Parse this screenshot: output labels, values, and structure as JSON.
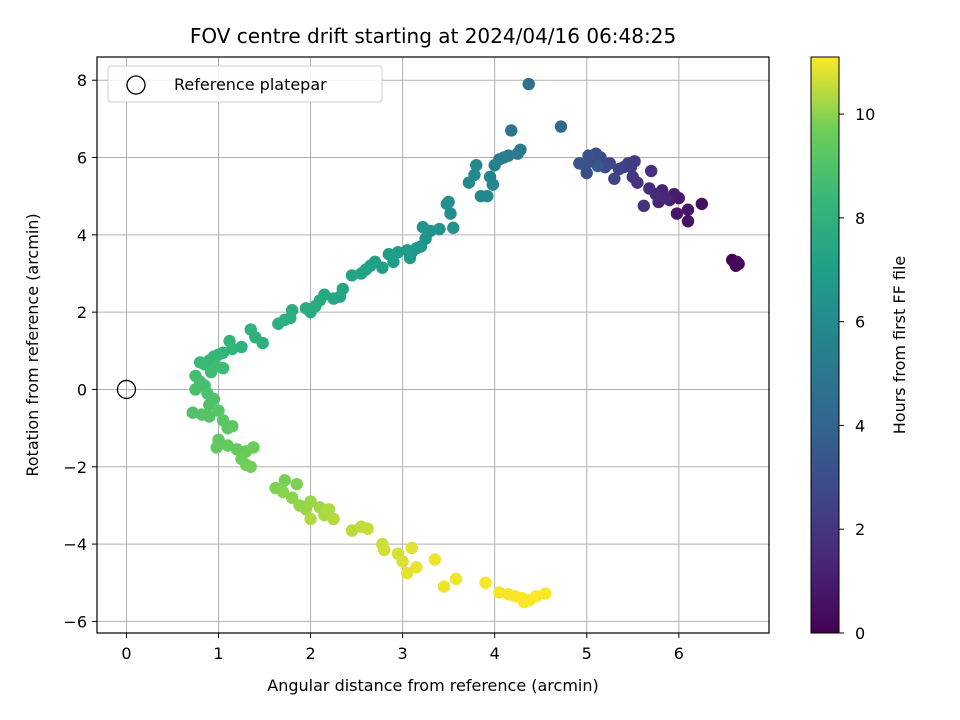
{
  "chart_data": {
    "type": "scatter",
    "title": "FOV centre drift starting at 2024/04/16 06:48:25",
    "xlabel": "Angular distance from reference (arcmin)",
    "ylabel": "Rotation from reference (arcmin)",
    "xlim": [
      -0.32,
      6.98
    ],
    "ylim": [
      -6.3,
      8.6
    ],
    "x_ticks": [
      0,
      1,
      2,
      3,
      4,
      5,
      6
    ],
    "y_ticks": [
      -6,
      -4,
      -2,
      0,
      2,
      4,
      6,
      8
    ],
    "grid": true,
    "colormap": "viridis",
    "colorbar": {
      "label": "Hours from first FF file",
      "range": [
        0,
        11.1
      ],
      "ticks": [
        0,
        2,
        4,
        6,
        8,
        10
      ]
    },
    "legend": {
      "position": "top-left",
      "entries": [
        "Reference platepar"
      ]
    },
    "reference_point": {
      "x": 0,
      "y": 0
    },
    "series": [
      {
        "fields": [
          "x",
          "y",
          "hours"
        ],
        "points": [
          [
            6.6,
            3.3,
            0.05
          ],
          [
            6.62,
            3.2,
            0.1
          ],
          [
            6.58,
            3.35,
            0.15
          ],
          [
            6.65,
            3.25,
            0.2
          ],
          [
            6.63,
            3.3,
            0.25
          ],
          [
            6.25,
            4.8,
            0.5
          ],
          [
            6.1,
            4.35,
            0.6
          ],
          [
            6.1,
            4.65,
            0.7
          ],
          [
            5.98,
            4.55,
            0.8
          ],
          [
            6.0,
            4.95,
            0.9
          ],
          [
            5.95,
            5.05,
            1.0
          ],
          [
            5.9,
            4.9,
            1.1
          ],
          [
            5.82,
            5.15,
            1.2
          ],
          [
            5.78,
            4.85,
            1.3
          ],
          [
            5.85,
            4.95,
            1.4
          ],
          [
            5.75,
            5.05,
            1.5
          ],
          [
            5.68,
            5.2,
            1.6
          ],
          [
            5.7,
            5.65,
            1.7
          ],
          [
            5.62,
            4.75,
            1.8
          ],
          [
            5.55,
            5.35,
            1.9
          ],
          [
            5.5,
            5.5,
            2.0
          ],
          [
            5.48,
            5.75,
            2.1
          ],
          [
            5.52,
            5.9,
            2.2
          ],
          [
            5.45,
            5.85,
            2.3
          ],
          [
            5.4,
            5.75,
            2.4
          ],
          [
            5.35,
            5.7,
            2.5
          ],
          [
            5.3,
            5.45,
            2.6
          ],
          [
            5.25,
            5.85,
            2.7
          ],
          [
            5.2,
            5.75,
            2.8
          ],
          [
            5.15,
            6.0,
            2.9
          ],
          [
            5.1,
            6.1,
            3.0
          ],
          [
            5.05,
            5.9,
            3.05
          ],
          [
            5.0,
            5.6,
            3.1
          ],
          [
            4.98,
            5.8,
            3.15
          ],
          [
            5.02,
            6.05,
            3.2
          ],
          [
            4.92,
            5.85,
            3.3
          ],
          [
            5.12,
            5.78,
            3.4
          ],
          [
            4.72,
            6.8,
            4.1
          ],
          [
            4.37,
            7.9,
            4.6
          ],
          [
            4.18,
            6.7,
            4.8
          ],
          [
            4.28,
            6.2,
            5.0
          ],
          [
            4.25,
            6.1,
            5.1
          ],
          [
            4.15,
            6.05,
            5.2
          ],
          [
            4.1,
            6.0,
            5.3
          ],
          [
            4.05,
            5.95,
            5.4
          ],
          [
            4.0,
            5.8,
            5.5
          ],
          [
            3.95,
            5.5,
            5.6
          ],
          [
            3.98,
            5.3,
            5.7
          ],
          [
            3.92,
            5.0,
            5.75
          ],
          [
            3.85,
            5.0,
            5.8
          ],
          [
            3.8,
            5.8,
            5.85
          ],
          [
            3.78,
            5.55,
            5.9
          ],
          [
            3.72,
            5.35,
            5.95
          ],
          [
            3.5,
            4.85,
            6.1
          ],
          [
            3.52,
            4.55,
            6.2
          ],
          [
            3.48,
            4.8,
            6.3
          ],
          [
            3.55,
            4.18,
            6.35
          ],
          [
            3.4,
            4.15,
            6.4
          ],
          [
            3.3,
            4.1,
            6.45
          ],
          [
            3.22,
            4.2,
            6.5
          ],
          [
            3.25,
            3.9,
            6.55
          ],
          [
            3.2,
            3.7,
            6.6
          ],
          [
            3.15,
            3.65,
            6.65
          ],
          [
            3.1,
            3.55,
            6.7
          ],
          [
            3.08,
            3.4,
            6.75
          ],
          [
            3.05,
            3.6,
            6.8
          ],
          [
            2.95,
            3.55,
            6.85
          ],
          [
            2.9,
            3.3,
            6.9
          ],
          [
            2.85,
            3.5,
            6.95
          ],
          [
            2.78,
            3.15,
            7.0
          ],
          [
            2.7,
            3.3,
            7.05
          ],
          [
            2.65,
            3.2,
            7.1
          ],
          [
            2.6,
            3.1,
            7.15
          ],
          [
            2.55,
            3.0,
            7.2
          ],
          [
            2.45,
            2.95,
            7.25
          ],
          [
            2.35,
            2.6,
            7.3
          ],
          [
            2.32,
            2.4,
            7.35
          ],
          [
            2.25,
            2.35,
            7.4
          ],
          [
            2.15,
            2.45,
            7.45
          ],
          [
            2.1,
            2.3,
            7.5
          ],
          [
            2.05,
            2.15,
            7.55
          ],
          [
            2.0,
            2.0,
            7.6
          ],
          [
            1.95,
            2.1,
            7.65
          ],
          [
            1.8,
            2.05,
            7.7
          ],
          [
            1.78,
            1.85,
            7.75
          ],
          [
            1.72,
            1.8,
            7.8
          ],
          [
            1.65,
            1.7,
            7.85
          ],
          [
            1.48,
            1.2,
            7.9
          ],
          [
            1.4,
            1.35,
            7.95
          ],
          [
            1.35,
            1.55,
            8.0
          ],
          [
            1.25,
            1.1,
            8.05
          ],
          [
            1.15,
            1.05,
            8.1
          ],
          [
            1.12,
            1.25,
            8.15
          ],
          [
            1.05,
            0.95,
            8.2
          ],
          [
            1.0,
            0.9,
            8.25
          ],
          [
            0.95,
            0.85,
            8.3
          ],
          [
            0.9,
            0.75,
            8.35
          ],
          [
            0.85,
            0.65,
            8.4
          ],
          [
            0.8,
            0.7,
            8.45
          ],
          [
            1.05,
            0.55,
            8.5
          ],
          [
            0.98,
            0.6,
            8.55
          ],
          [
            0.92,
            0.45,
            8.6
          ],
          [
            0.75,
            0.35,
            8.65
          ],
          [
            0.8,
            0.2,
            8.7
          ],
          [
            0.85,
            0.1,
            8.75
          ],
          [
            0.75,
            0.0,
            8.8
          ],
          [
            0.88,
            -0.1,
            8.85
          ],
          [
            0.95,
            -0.25,
            8.9
          ],
          [
            0.9,
            -0.4,
            8.95
          ],
          [
            0.72,
            -0.6,
            9.0
          ],
          [
            0.82,
            -0.65,
            9.05
          ],
          [
            0.9,
            -0.7,
            9.1
          ],
          [
            1.0,
            -0.55,
            9.15
          ],
          [
            1.05,
            -0.8,
            9.2
          ],
          [
            1.1,
            -1.0,
            9.25
          ],
          [
            1.15,
            -0.95,
            9.3
          ],
          [
            1.0,
            -1.3,
            9.35
          ],
          [
            0.98,
            -1.5,
            9.4
          ],
          [
            1.1,
            -1.45,
            9.45
          ],
          [
            1.2,
            -1.55,
            9.5
          ],
          [
            1.3,
            -1.6,
            9.55
          ],
          [
            1.38,
            -1.5,
            9.6
          ],
          [
            1.25,
            -1.8,
            9.65
          ],
          [
            1.3,
            -1.95,
            9.7
          ],
          [
            1.35,
            -2.0,
            9.75
          ],
          [
            1.72,
            -2.35,
            9.8
          ],
          [
            1.85,
            -2.45,
            9.85
          ],
          [
            1.62,
            -2.55,
            9.9
          ],
          [
            1.7,
            -2.65,
            9.95
          ],
          [
            1.8,
            -2.8,
            10.0
          ],
          [
            1.88,
            -3.0,
            10.05
          ],
          [
            1.95,
            -3.1,
            10.1
          ],
          [
            2.0,
            -2.9,
            10.15
          ],
          [
            2.1,
            -3.05,
            10.2
          ],
          [
            2.15,
            -3.25,
            10.25
          ],
          [
            2.2,
            -3.1,
            10.3
          ],
          [
            2.0,
            -3.35,
            10.35
          ],
          [
            2.25,
            -3.35,
            10.4
          ],
          [
            2.45,
            -3.65,
            10.45
          ],
          [
            2.55,
            -3.55,
            10.5
          ],
          [
            2.62,
            -3.6,
            10.55
          ],
          [
            2.78,
            -4.0,
            10.6
          ],
          [
            2.8,
            -4.15,
            10.65
          ],
          [
            2.95,
            -4.25,
            10.7
          ],
          [
            3.0,
            -4.45,
            10.75
          ],
          [
            3.1,
            -4.1,
            10.8
          ],
          [
            3.05,
            -4.75,
            10.85
          ],
          [
            3.15,
            -4.6,
            10.9
          ],
          [
            3.35,
            -4.4,
            10.92
          ],
          [
            3.45,
            -5.1,
            10.95
          ],
          [
            3.58,
            -4.9,
            10.97
          ],
          [
            3.9,
            -5.0,
            11.0
          ],
          [
            4.05,
            -5.25,
            11.02
          ],
          [
            4.15,
            -5.3,
            11.04
          ],
          [
            4.22,
            -5.35,
            11.05
          ],
          [
            4.3,
            -5.4,
            11.06
          ],
          [
            4.32,
            -5.5,
            11.07
          ],
          [
            4.38,
            -5.45,
            11.08
          ],
          [
            4.45,
            -5.35,
            11.09
          ],
          [
            4.55,
            -5.28,
            11.1
          ]
        ]
      }
    ]
  }
}
